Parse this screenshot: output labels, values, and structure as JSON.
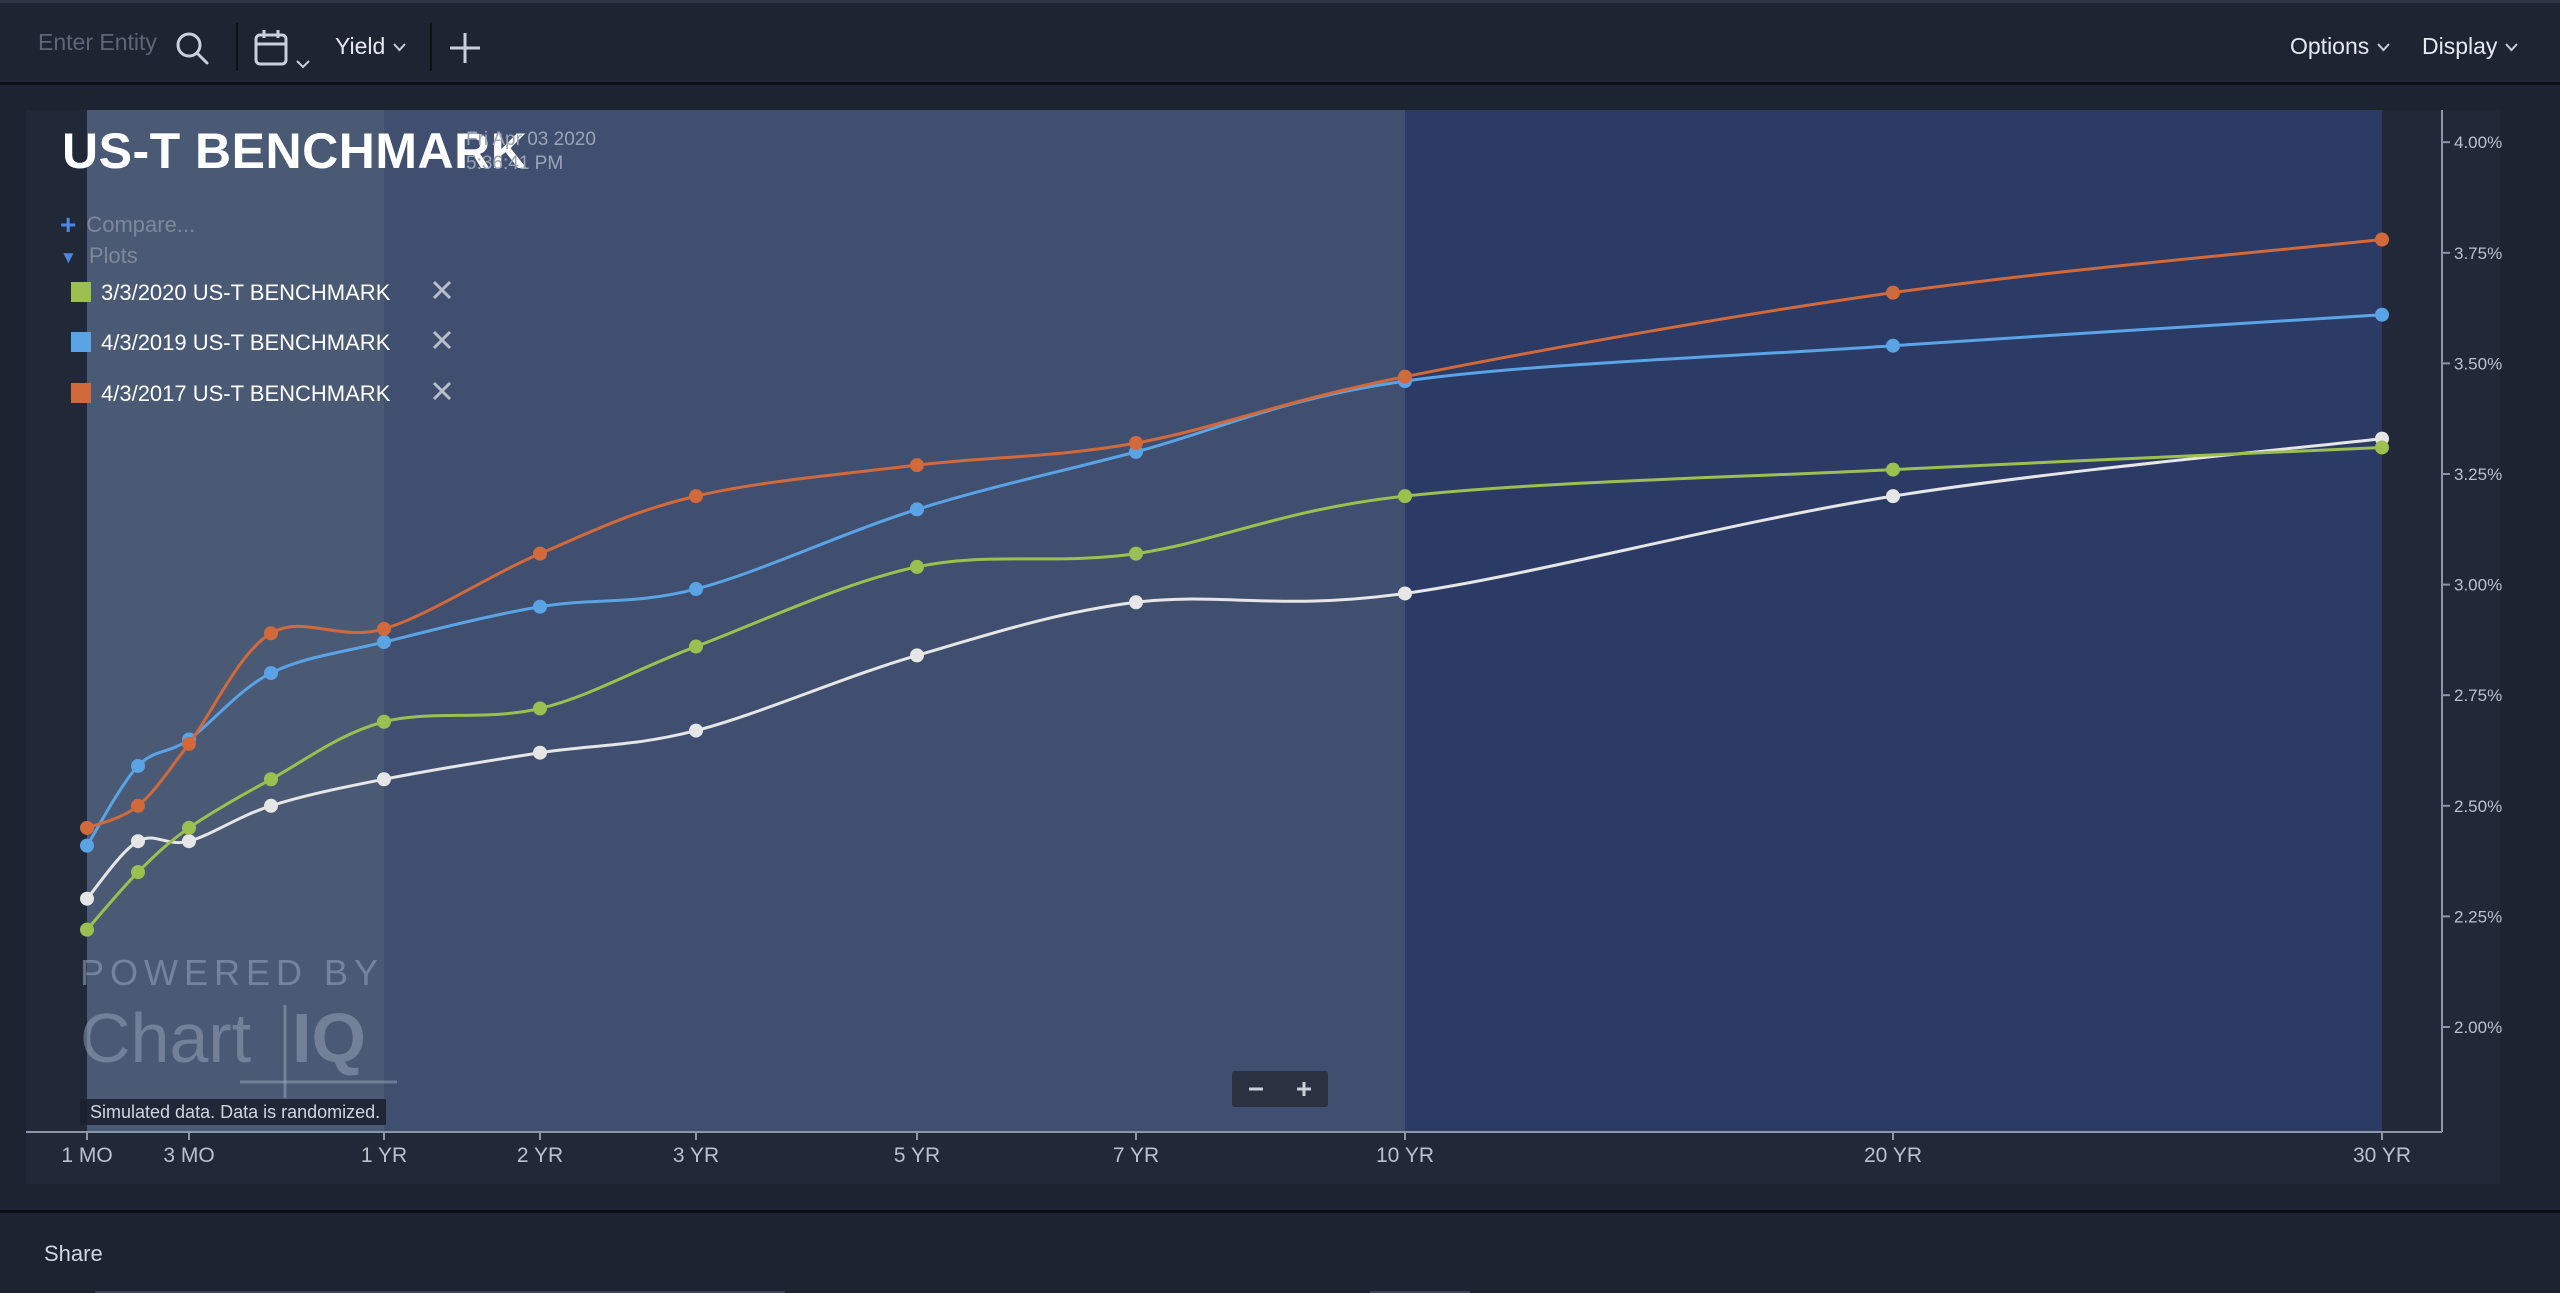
{
  "toolbar": {
    "search_placeholder": "Enter Entity",
    "yield_label": "Yield",
    "options_label": "Options",
    "display_label": "Display"
  },
  "chart_header": {
    "title": "US-T BENCHMARK",
    "date": "Fri Apr 03 2020",
    "time": "5:36:41 PM",
    "compare_label": "Compare...",
    "plots_label": "Plots"
  },
  "legend": [
    {
      "label": "3/3/2020 US-T BENCHMARK",
      "color": "#9cc050"
    },
    {
      "label": "4/3/2019 US-T BENCHMARK",
      "color": "#5aa4e6"
    },
    {
      "label": "4/3/2017 US-T BENCHMARK",
      "color": "#d2693a"
    }
  ],
  "watermark": {
    "powered": "POWERED BY",
    "brand1": "Chart",
    "brand2": "IQ"
  },
  "note": "Simulated data.  Data is randomized.",
  "footer": {
    "share_label": "Share"
  },
  "colors": {
    "current": "#e6e6e6",
    "bg_panel": "#212939",
    "band_short": "#4a5a75",
    "band_mid": "#404f70",
    "band_long": "#2c3a66"
  },
  "chart_data": {
    "type": "line",
    "categories": [
      "1 MO",
      "2 MO",
      "3 MO",
      "6 MO",
      "1 YR",
      "2 YR",
      "3 YR",
      "5 YR",
      "7 YR",
      "10 YR",
      "20 YR",
      "30 YR"
    ],
    "x_tick_labels": [
      "1 MO",
      "3 MO",
      "1 YR",
      "2 YR",
      "3 YR",
      "5 YR",
      "7 YR",
      "10 YR",
      "20 YR",
      "30 YR"
    ],
    "x_months": [
      1,
      2,
      3,
      6,
      12,
      24,
      36,
      60,
      84,
      120,
      240,
      360
    ],
    "y_ticks": [
      "2.00%",
      "2.25%",
      "2.50%",
      "2.75%",
      "3.00%",
      "3.25%",
      "3.50%",
      "3.75%",
      "4.00%"
    ],
    "y_tick_values": [
      2.0,
      2.25,
      2.5,
      2.75,
      3.0,
      3.25,
      3.5,
      3.75,
      4.0
    ],
    "ylim": [
      1.8,
      4.05
    ],
    "series": [
      {
        "name": "",
        "color": "#e6e6e6",
        "values": [
          2.29,
          2.42,
          2.42,
          2.5,
          2.56,
          2.62,
          2.67,
          2.84,
          2.96,
          2.98,
          3.2,
          3.33
        ]
      },
      {
        "name": "3/3/2020 US-T BENCHMARK",
        "color": "#9cc050",
        "values": [
          2.22,
          2.35,
          2.45,
          2.56,
          2.69,
          2.72,
          2.86,
          3.04,
          3.07,
          3.2,
          3.26,
          3.31
        ]
      },
      {
        "name": "4/3/2019 US-T BENCHMARK",
        "color": "#5aa4e6",
        "values": [
          2.41,
          2.59,
          2.65,
          2.8,
          2.87,
          2.95,
          2.99,
          3.17,
          3.3,
          3.46,
          3.54,
          3.61
        ]
      },
      {
        "name": "4/3/2017 US-T BENCHMARK",
        "color": "#d2693a",
        "values": [
          2.45,
          2.5,
          2.64,
          2.89,
          2.9,
          3.07,
          3.2,
          3.27,
          3.32,
          3.47,
          3.66,
          3.78
        ]
      }
    ]
  }
}
